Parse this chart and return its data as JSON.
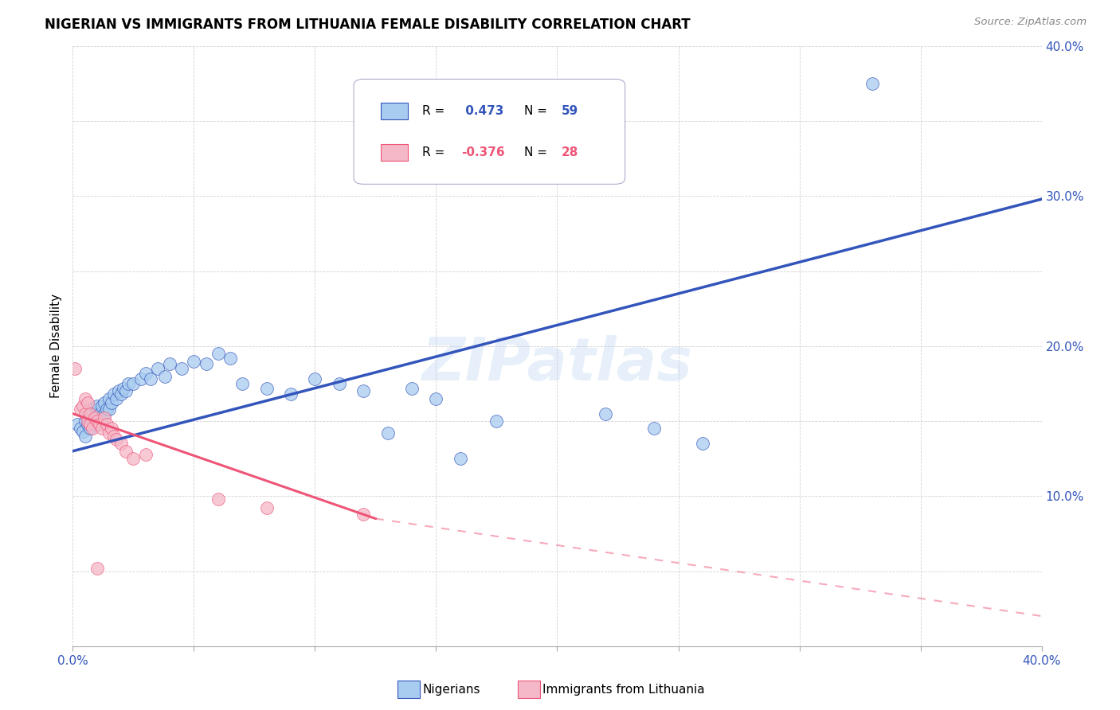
{
  "title": "NIGERIAN VS IMMIGRANTS FROM LITHUANIA FEMALE DISABILITY CORRELATION CHART",
  "source": "Source: ZipAtlas.com",
  "ylabel": "Female Disability",
  "x_min": 0.0,
  "x_max": 0.4,
  "y_min": 0.0,
  "y_max": 0.4,
  "x_ticks": [
    0.0,
    0.05,
    0.1,
    0.15,
    0.2,
    0.25,
    0.3,
    0.35,
    0.4
  ],
  "y_ticks": [
    0.0,
    0.05,
    0.1,
    0.15,
    0.2,
    0.25,
    0.3,
    0.35,
    0.4
  ],
  "y_tick_labels_right": [
    "",
    "",
    "10.0%",
    "",
    "20.0%",
    "",
    "30.0%",
    "",
    "40.0%"
  ],
  "watermark": "ZIPatlas",
  "color_nigerian": "#A8CCF0",
  "color_lithuania": "#F5B8C8",
  "color_line_nigerian": "#3355BB",
  "color_line_lithuania": "#EE5577",
  "nigerian_scatter": [
    [
      0.002,
      0.148
    ],
    [
      0.003,
      0.145
    ],
    [
      0.004,
      0.143
    ],
    [
      0.005,
      0.15
    ],
    [
      0.005,
      0.14
    ],
    [
      0.006,
      0.155
    ],
    [
      0.006,
      0.148
    ],
    [
      0.007,
      0.152
    ],
    [
      0.007,
      0.145
    ],
    [
      0.008,
      0.158
    ],
    [
      0.008,
      0.15
    ],
    [
      0.009,
      0.155
    ],
    [
      0.009,
      0.148
    ],
    [
      0.01,
      0.16
    ],
    [
      0.01,
      0.153
    ],
    [
      0.011,
      0.155
    ],
    [
      0.011,
      0.148
    ],
    [
      0.012,
      0.16
    ],
    [
      0.012,
      0.152
    ],
    [
      0.013,
      0.162
    ],
    [
      0.013,
      0.155
    ],
    [
      0.014,
      0.158
    ],
    [
      0.015,
      0.165
    ],
    [
      0.015,
      0.158
    ],
    [
      0.016,
      0.162
    ],
    [
      0.017,
      0.168
    ],
    [
      0.018,
      0.165
    ],
    [
      0.019,
      0.17
    ],
    [
      0.02,
      0.168
    ],
    [
      0.021,
      0.172
    ],
    [
      0.022,
      0.17
    ],
    [
      0.023,
      0.175
    ],
    [
      0.025,
      0.175
    ],
    [
      0.028,
      0.178
    ],
    [
      0.03,
      0.182
    ],
    [
      0.032,
      0.178
    ],
    [
      0.035,
      0.185
    ],
    [
      0.038,
      0.18
    ],
    [
      0.04,
      0.188
    ],
    [
      0.045,
      0.185
    ],
    [
      0.05,
      0.19
    ],
    [
      0.055,
      0.188
    ],
    [
      0.06,
      0.195
    ],
    [
      0.065,
      0.192
    ],
    [
      0.07,
      0.175
    ],
    [
      0.08,
      0.172
    ],
    [
      0.09,
      0.168
    ],
    [
      0.1,
      0.178
    ],
    [
      0.11,
      0.175
    ],
    [
      0.12,
      0.17
    ],
    [
      0.13,
      0.142
    ],
    [
      0.14,
      0.172
    ],
    [
      0.15,
      0.165
    ],
    [
      0.16,
      0.125
    ],
    [
      0.175,
      0.15
    ],
    [
      0.22,
      0.155
    ],
    [
      0.24,
      0.145
    ],
    [
      0.26,
      0.135
    ],
    [
      0.33,
      0.375
    ]
  ],
  "lithuania_scatter": [
    [
      0.001,
      0.185
    ],
    [
      0.003,
      0.158
    ],
    [
      0.004,
      0.16
    ],
    [
      0.005,
      0.165
    ],
    [
      0.005,
      0.155
    ],
    [
      0.006,
      0.162
    ],
    [
      0.006,
      0.15
    ],
    [
      0.007,
      0.155
    ],
    [
      0.007,
      0.148
    ],
    [
      0.008,
      0.145
    ],
    [
      0.009,
      0.152
    ],
    [
      0.01,
      0.15
    ],
    [
      0.011,
      0.148
    ],
    [
      0.012,
      0.145
    ],
    [
      0.013,
      0.152
    ],
    [
      0.014,
      0.148
    ],
    [
      0.015,
      0.142
    ],
    [
      0.016,
      0.145
    ],
    [
      0.017,
      0.14
    ],
    [
      0.018,
      0.138
    ],
    [
      0.02,
      0.135
    ],
    [
      0.022,
      0.13
    ],
    [
      0.025,
      0.125
    ],
    [
      0.03,
      0.128
    ],
    [
      0.06,
      0.098
    ],
    [
      0.08,
      0.092
    ],
    [
      0.12,
      0.088
    ],
    [
      0.01,
      0.052
    ]
  ],
  "nigerian_line": [
    [
      0.0,
      0.13
    ],
    [
      0.4,
      0.298
    ]
  ],
  "lithuania_line_solid": [
    [
      0.0,
      0.155
    ],
    [
      0.125,
      0.085
    ]
  ],
  "lithuania_line_dashed": [
    [
      0.125,
      0.085
    ],
    [
      0.4,
      0.02
    ]
  ]
}
